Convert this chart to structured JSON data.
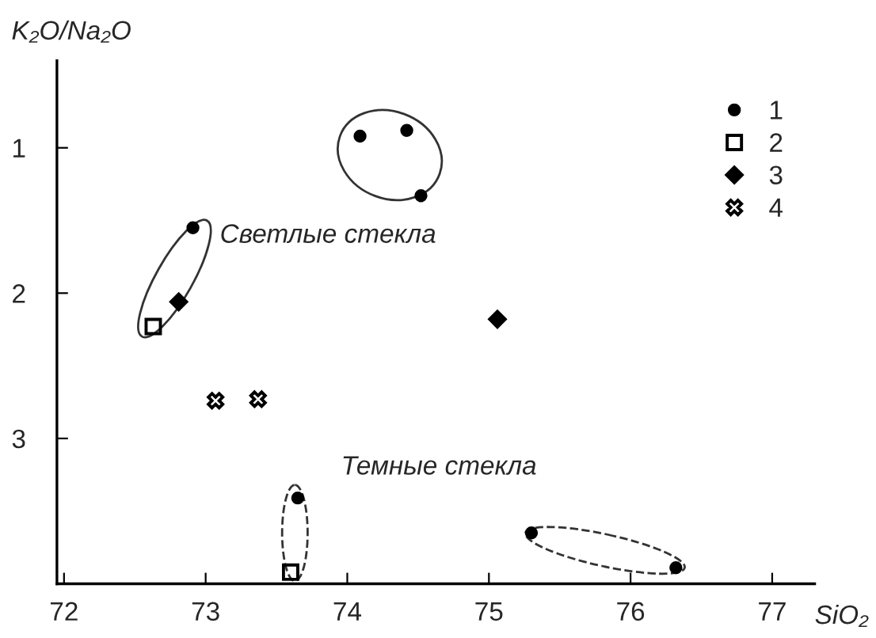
{
  "chart_data": {
    "type": "scatter",
    "xlabel": "SiO₂",
    "ylabel": "K₂O/Na₂O",
    "xlim": [
      71.95,
      77.3
    ],
    "xticks": [
      72,
      73,
      74,
      75,
      76,
      77
    ],
    "ylim": [
      4.0,
      0.4
    ],
    "yticks": [
      1,
      2,
      3
    ],
    "grid": false,
    "legend": "top right",
    "annotations": [
      "Светлые стекла",
      "Темные стекла"
    ],
    "series": [
      {
        "name": "1",
        "color": "#000000",
        "marker": "circle",
        "x": [
          74.09,
          74.42,
          74.52,
          72.91,
          73.65,
          75.3,
          76.32
        ],
        "values": [
          0.92,
          0.88,
          1.33,
          1.55,
          3.41,
          3.65,
          3.89
        ]
      },
      {
        "name": "2",
        "color": "#000000",
        "marker": "square",
        "x": [
          72.63,
          73.6
        ],
        "values": [
          2.23,
          3.92
        ]
      },
      {
        "name": "3",
        "color": "#000000",
        "marker": "diamond",
        "x": [
          72.81,
          75.06
        ],
        "values": [
          2.06,
          2.18
        ]
      },
      {
        "name": "4",
        "color": "#000000",
        "marker": "cross",
        "x": [
          73.07,
          73.37
        ],
        "values": [
          2.74,
          2.73
        ]
      }
    ]
  }
}
